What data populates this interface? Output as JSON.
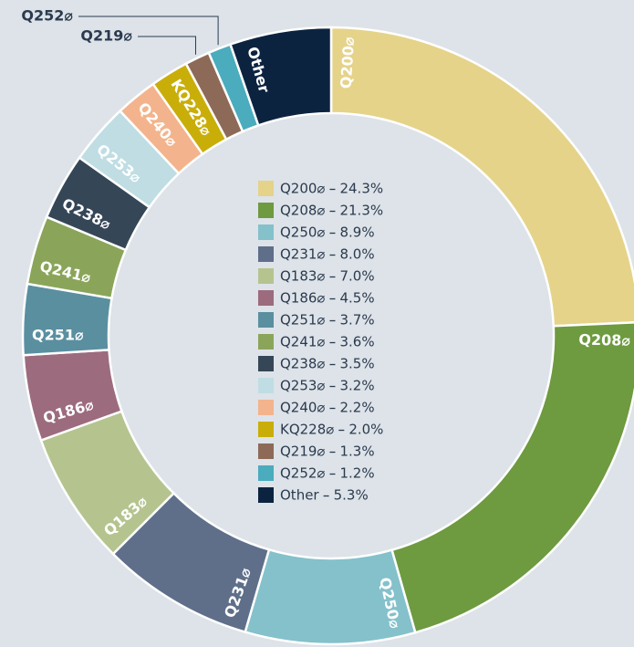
{
  "chart_data": {
    "type": "donut",
    "categories": [
      "Q200⌀",
      "Q208⌀",
      "Q250⌀",
      "Q231⌀",
      "Q183⌀",
      "Q186⌀",
      "Q251⌀",
      "Q241⌀",
      "Q238⌀",
      "Q253⌀",
      "Q240⌀",
      "KQ228⌀",
      "Q219⌀",
      "Q252⌀",
      "Other"
    ],
    "values": [
      24.3,
      21.3,
      8.9,
      8.0,
      7.0,
      4.5,
      3.7,
      3.6,
      3.5,
      3.2,
      2.2,
      2.0,
      1.3,
      1.2,
      5.3
    ],
    "value_labels": [
      "24.3%",
      "21.3%",
      "8.9%",
      "8.0%",
      "7.0%",
      "4.5%",
      "3.7%",
      "3.6%",
      "3.5%",
      "3.2%",
      "2.2%",
      "2.0%",
      "1.3%",
      "1.2%",
      "5.3%"
    ],
    "colors": [
      "#e5d38a",
      "#6e9a40",
      "#84c1cb",
      "#5f6f8a",
      "#b5c48f",
      "#9c6b7e",
      "#5a8fa0",
      "#8aa55a",
      "#354657",
      "#bfdde3",
      "#f3b48d",
      "#c9ae0a",
      "#8d6a58",
      "#4aacbd",
      "#0c2340"
    ],
    "legend": true
  }
}
